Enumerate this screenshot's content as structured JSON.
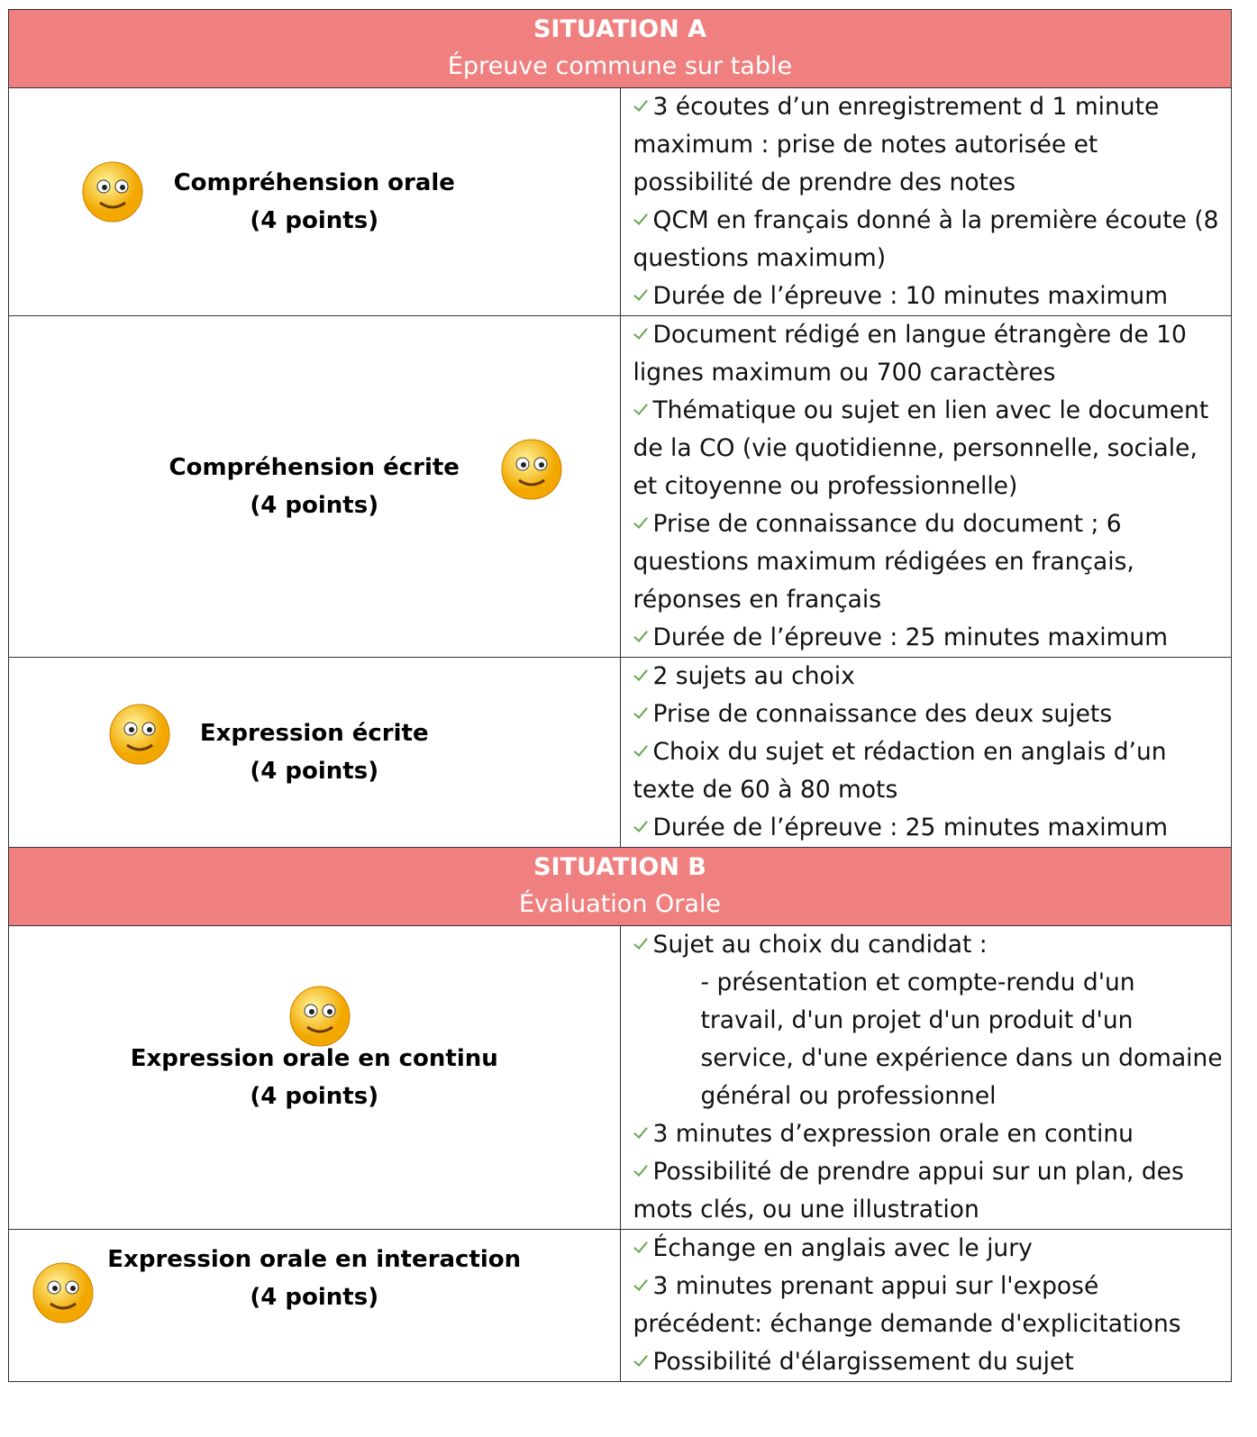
{
  "sections": [
    {
      "title": "SITUATION A",
      "subtitle": "Épreuve commune sur table",
      "rows": [
        {
          "skill": "Compréhension orale",
          "points": "(4 points)",
          "items": [
            {
              "text": "3 écoutes d’un enregistrement d 1 minute maximum : prise de notes autorisée et possibilité de prendre des notes"
            },
            {
              "text": "QCM en français donné à la première écoute (8 questions maximum)"
            },
            {
              "text": "Durée de l’épreuve : 10 minutes maximum"
            }
          ]
        },
        {
          "skill": "Compréhension écrite",
          "points": "(4 points)",
          "items": [
            {
              "text": "Document rédigé en langue étrangère de 10 lignes maximum ou 700 caractères"
            },
            {
              "text": "Thématique ou sujet en lien avec le document de la CO (vie quotidienne, personnelle, sociale, et citoyenne ou professionnelle)"
            },
            {
              "text": "Prise de connaissance du document ; 6 questions maximum rédigées en français, réponses en français"
            },
            {
              "text": "Durée de l’épreuve : 25 minutes maximum"
            }
          ]
        },
        {
          "skill": "Expression écrite",
          "points": "(4 points)",
          "items": [
            {
              "text": "2 sujets au choix"
            },
            {
              "text": "Prise de connaissance des deux sujets"
            },
            {
              "text": "Choix du sujet et rédaction en anglais d’un texte de 60 à 80 mots"
            },
            {
              "text": "Durée de l’épreuve : 25 minutes maximum"
            }
          ]
        }
      ]
    },
    {
      "title": "SITUATION B",
      "subtitle": "Évaluation Orale",
      "rows": [
        {
          "skill": "Expression orale en continu",
          "points": "(4 points)",
          "items": [
            {
              "text": "Sujet au choix du candidat :",
              "details": [
                "- présentation et compte-rendu d'un travail, d'un projet d'un produit d'un service, d'une expérience dans un domaine général ou professionnel"
              ]
            },
            {
              "text": "3 minutes d’expression orale en continu"
            },
            {
              "text": "Possibilité de prendre appui sur un plan, des mots clés, ou une illustration"
            }
          ]
        },
        {
          "skill": "Expression orale en interaction",
          "points": "(4 points)",
          "items": [
            {
              "text": "Échange en anglais avec le jury"
            },
            {
              "text": "3 minutes prenant appui sur l'exposé précédent: échange demande d'explicitations"
            },
            {
              "text": "Possibilité d'élargissement du sujet"
            }
          ]
        }
      ]
    }
  ]
}
